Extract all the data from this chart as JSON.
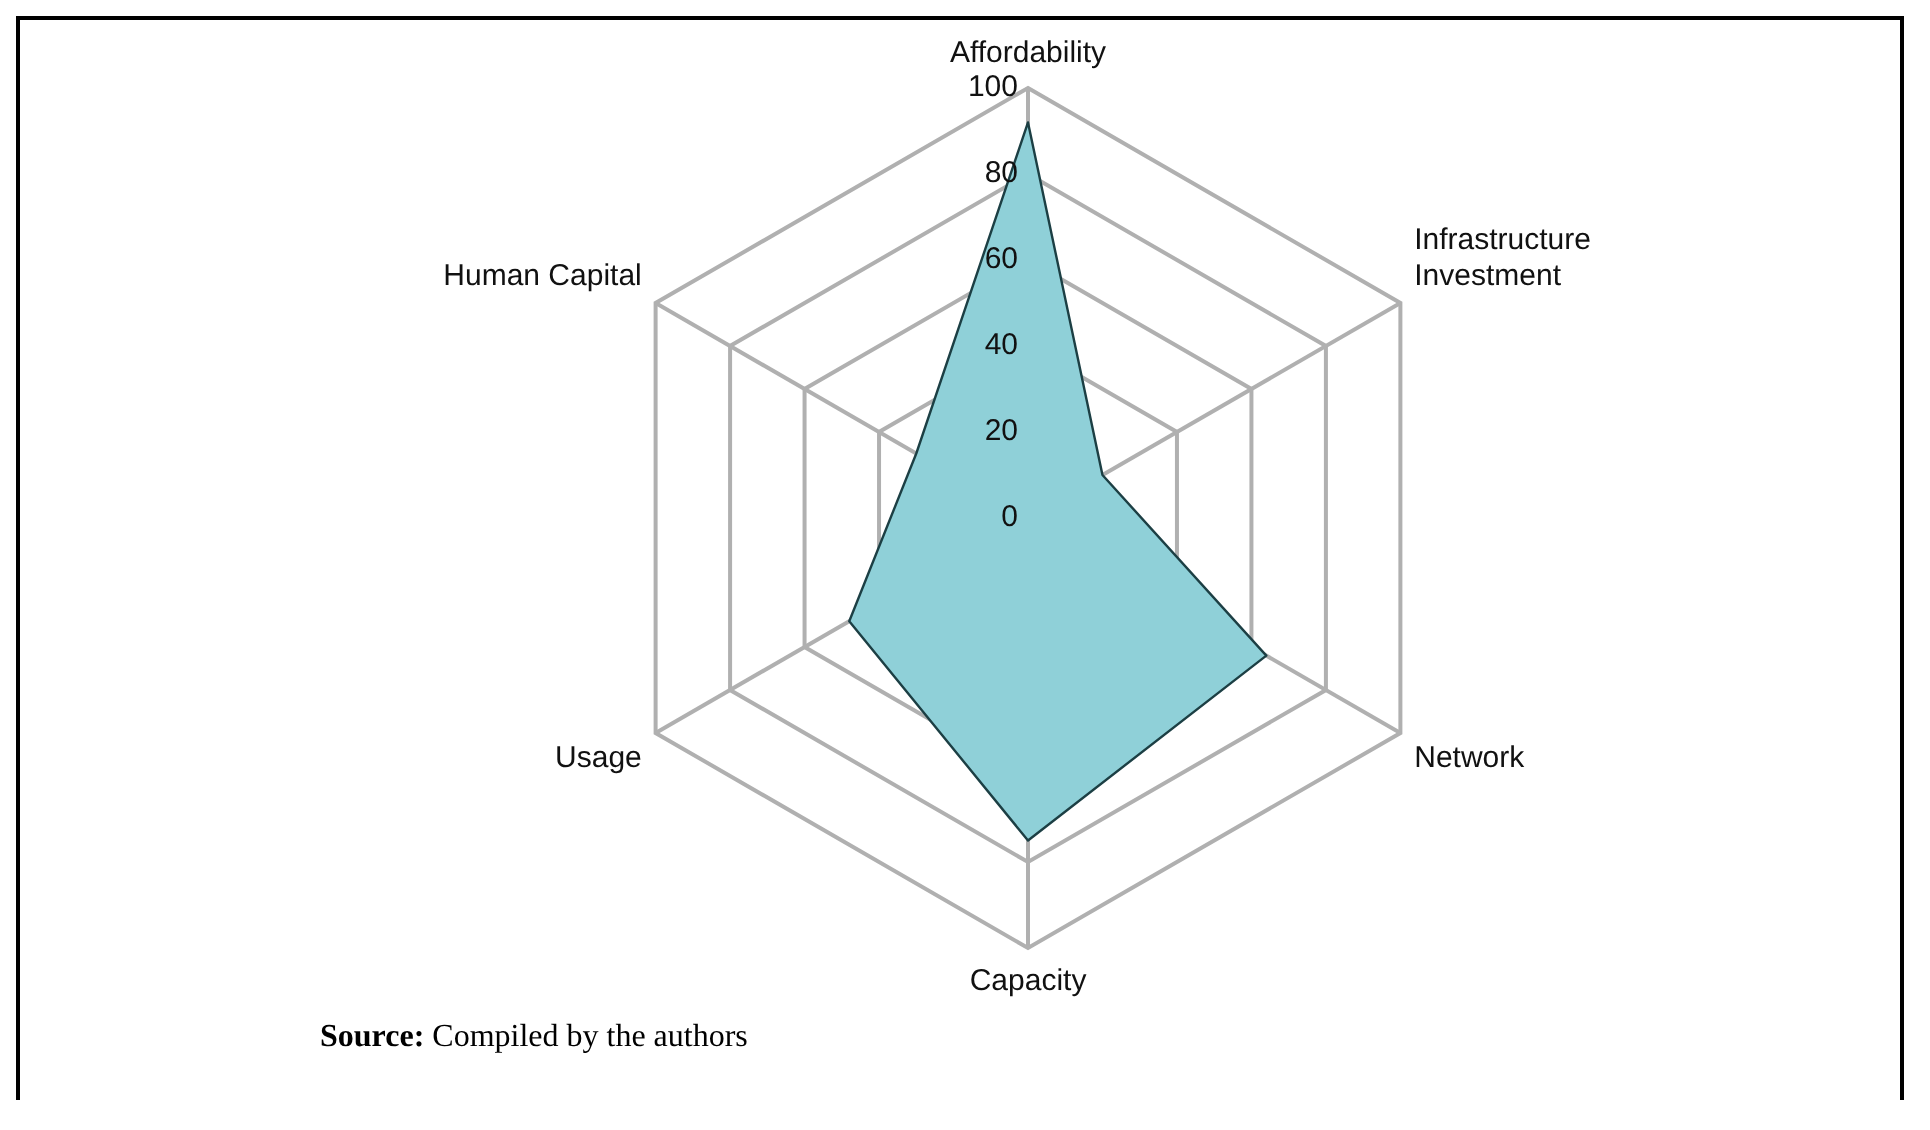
{
  "chart_data": {
    "type": "radar",
    "categories": [
      "Affordability",
      "Infrastructure\nInvestment",
      "Network",
      "Capacity",
      "Usage",
      "Human Capital"
    ],
    "series": [
      {
        "color": "#8fd0d8",
        "values": [
          92,
          20,
          64,
          75,
          48,
          30
        ]
      }
    ],
    "ylim": [
      0,
      100
    ],
    "yticks": [
      0,
      20,
      40,
      60,
      80,
      100
    ],
    "grid": true,
    "legend": false,
    "marker": "none",
    "annotations": [
      "Source: Compiled by the authors"
    ]
  }
}
